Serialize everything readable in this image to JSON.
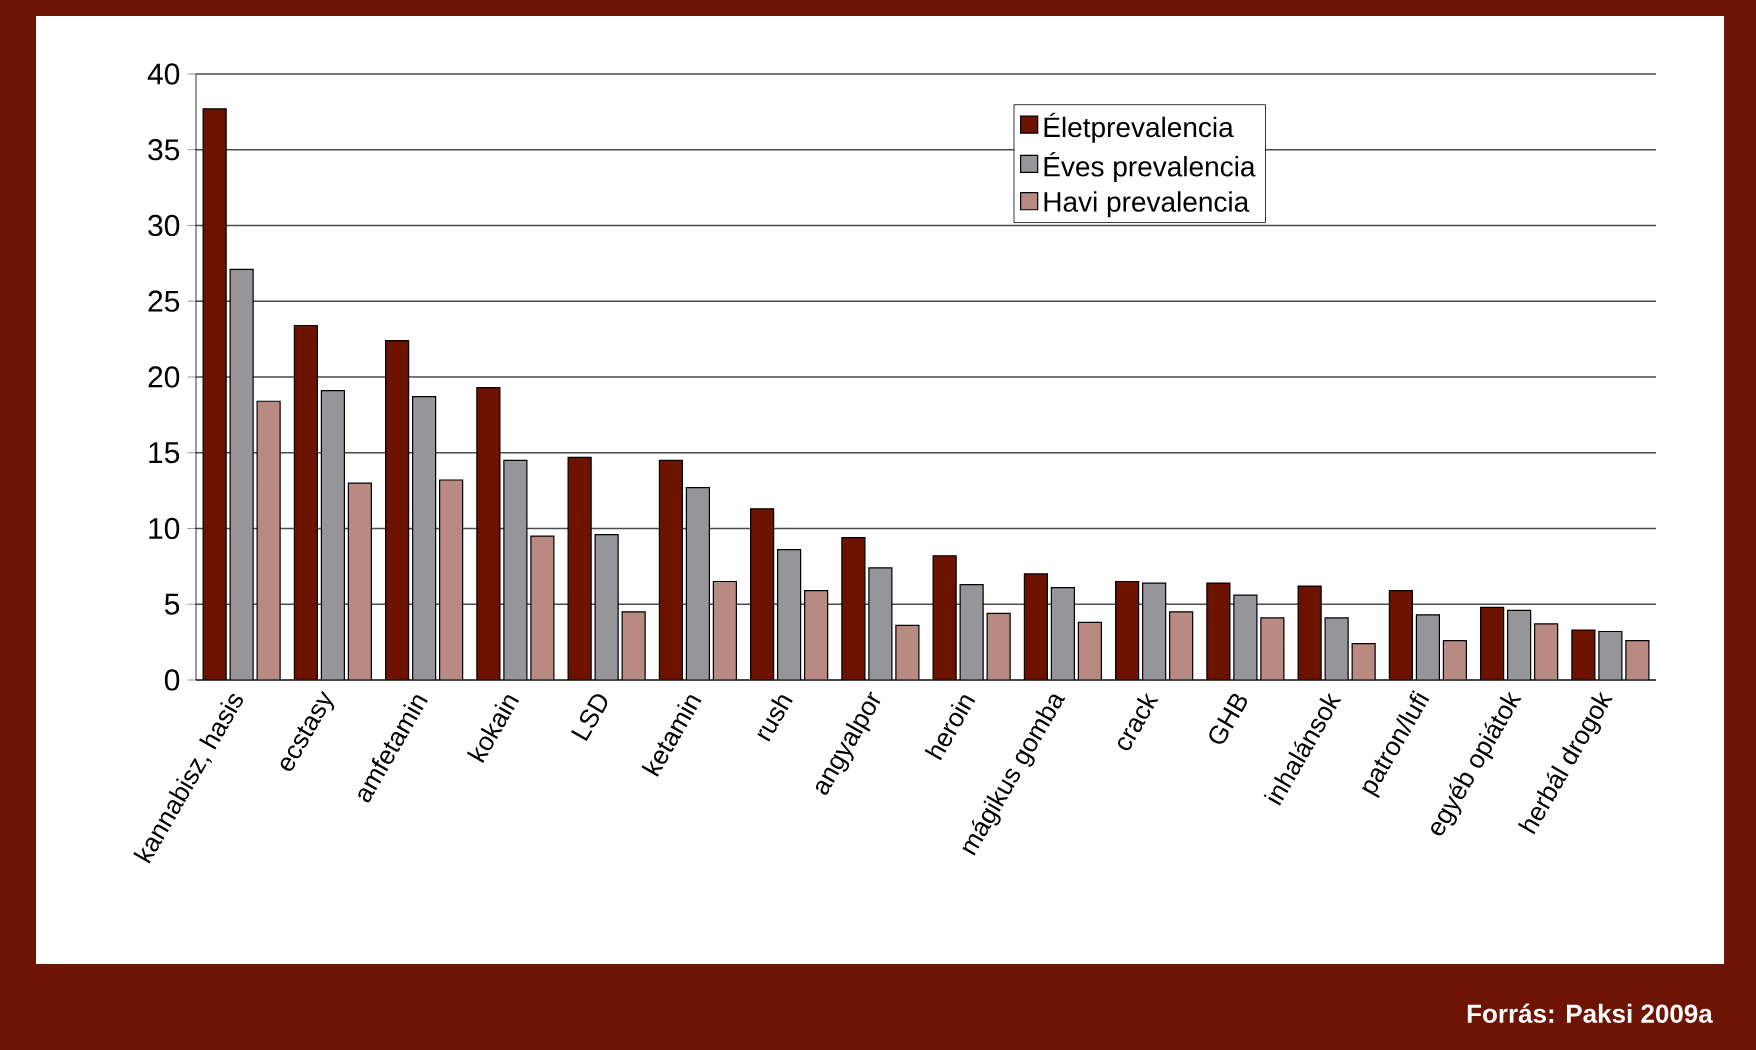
{
  "chart_data": {
    "type": "bar",
    "categories": [
      "kannabisz, hasis",
      "ecstasy",
      "amfetamin",
      "kokain",
      "LSD",
      "ketamin",
      "rush",
      "angyalpor",
      "heroin",
      "mágikus gomba",
      "crack",
      "GHB",
      "inhalánsok",
      "patron/lufi",
      "egyéb opiátok",
      "herbál drogok"
    ],
    "series": [
      {
        "name": "Életprevalencia",
        "color": "#6e1200",
        "values": [
          37.7,
          23.4,
          22.4,
          19.3,
          14.7,
          14.5,
          11.3,
          9.4,
          8.2,
          7.0,
          6.5,
          6.4,
          6.2,
          5.9,
          4.8,
          3.3
        ]
      },
      {
        "name": "Éves prevalencia",
        "color": "#96969a",
        "values": [
          27.1,
          19.1,
          18.7,
          14.5,
          9.6,
          12.7,
          8.6,
          7.4,
          6.3,
          6.1,
          6.4,
          5.6,
          4.1,
          4.3,
          4.6,
          3.2
        ]
      },
      {
        "name": "Havi prevalencia",
        "color": "#b98a82",
        "values": [
          18.4,
          13.0,
          13.2,
          9.5,
          4.5,
          6.5,
          5.9,
          3.6,
          4.4,
          3.8,
          4.5,
          4.1,
          2.4,
          2.6,
          3.7,
          2.6
        ]
      }
    ],
    "ylim": [
      0,
      40
    ],
    "yticks": [
      0,
      5,
      10,
      15,
      20,
      25,
      30,
      35,
      40
    ],
    "grid": "y",
    "legend": "top right",
    "annotations": [
      "**Forrás: Paksi 2009a**"
    ]
  }
}
